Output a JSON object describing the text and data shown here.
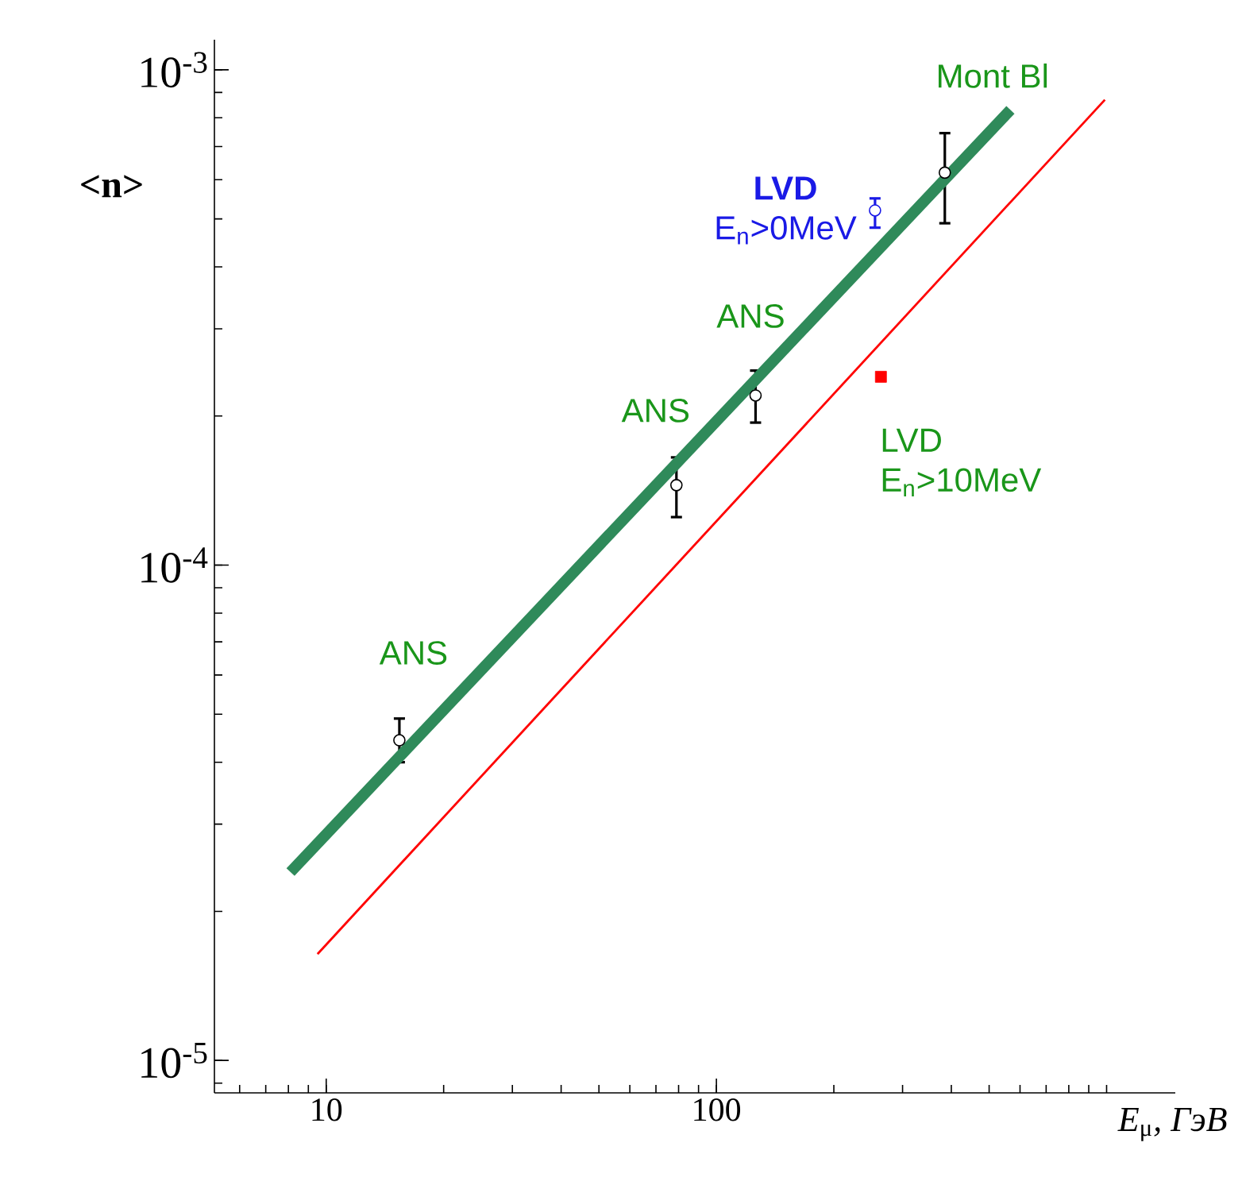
{
  "chart_data": {
    "type": "scatter",
    "log": "xy",
    "xlabel": "*E*$_{μ}$*, ГэВ*",
    "ylabel": "<n>",
    "xlim": [
      5.17,
      1500
    ],
    "ylim": [
      8.6e-06,
      0.00115
    ],
    "xticks": [
      10,
      100
    ],
    "yticks": [
      {
        "value": 1e-05,
        "label": "10$^{-5}$"
      },
      {
        "value": 0.0001,
        "label": "10$^{-4}$"
      },
      {
        "value": 0.001,
        "label": "10$^{-3}$"
      }
    ],
    "series": [
      {
        "color": "#000000",
        "marker": "circle",
        "x": [
          15.4,
          79,
          126,
          385
        ],
        "values": [
          4.43e-05,
          0.000145,
          0.00022,
          0.00062
        ],
        "errors": [
          [
            4e-05,
            4.9e-05
          ],
          [
            0.000125,
            0.000165
          ],
          [
            0.000194,
            0.000247
          ],
          [
            0.00049,
            0.000745
          ]
        ]
      },
      {
        "name": "**LVD** E$_{n}$>0MeV",
        "color": "#1a1ae6",
        "marker": "circle",
        "x": [
          255
        ],
        "values": [
          0.00052
        ],
        "errors": [
          [
            0.00048,
            0.00055
          ]
        ]
      },
      {
        "color": "#ff0000",
        "marker": "square",
        "x": [
          264
        ],
        "values": [
          0.00024
        ]
      },
      {
        "type": "line",
        "color": "#2f8a5a",
        "marker": "none",
        "line_style": "solid",
        "x": [
          8.1,
          567
        ],
        "values": [
          2.4e-05,
          0.00083
        ]
      },
      {
        "type": "line",
        "color": "#ff0000",
        "marker": "none",
        "line_style": "solid",
        "x": [
          9.5,
          990
        ],
        "values": [
          1.64e-05,
          0.00087
        ]
      }
    ],
    "annotations": [
      {
        "text": "ANS",
        "x": 15.4,
        "y": 4.43e-05
      },
      {
        "text": "ANS",
        "x": 79,
        "y": 0.000145
      },
      {
        "text": "ANS",
        "x": 126,
        "y": 0.00022
      },
      {
        "text": "Mont Bl",
        "x": 385,
        "y": 0.00062
      },
      {
        "text": "LVD E$_{n}$>10MeV",
        "x": 264,
        "y": 0.00024
      }
    ]
  }
}
